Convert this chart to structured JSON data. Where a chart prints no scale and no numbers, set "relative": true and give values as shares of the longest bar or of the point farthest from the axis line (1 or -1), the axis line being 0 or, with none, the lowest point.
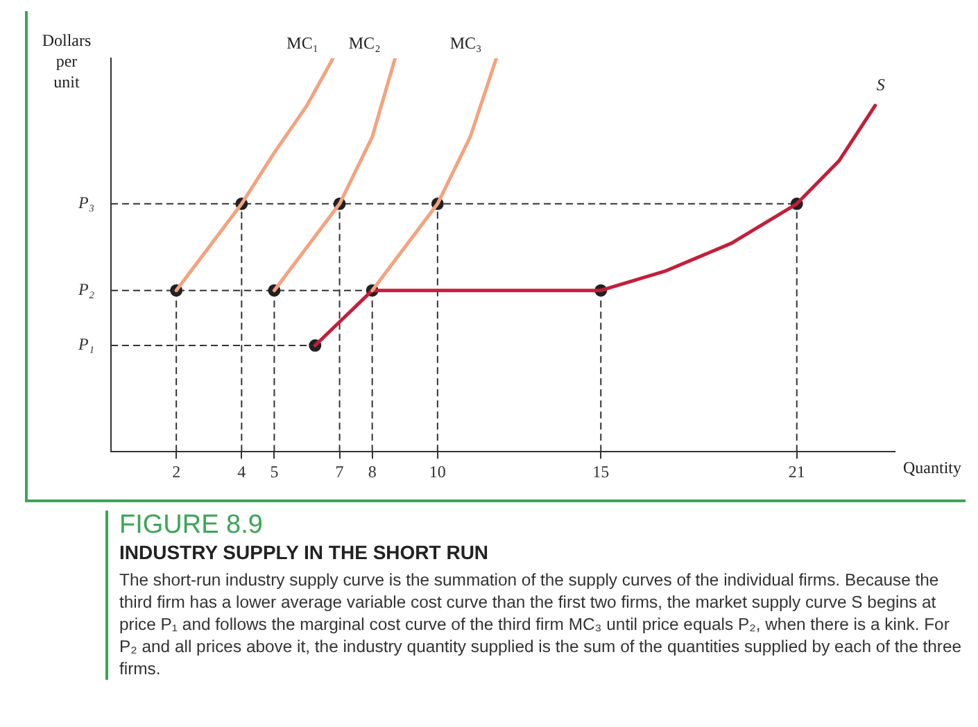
{
  "chart_data": {
    "type": "line",
    "title": "FIGURE 8.9",
    "subtitle": "INDUSTRY SUPPLY IN THE SHORT RUN",
    "xlabel": "Quantity",
    "ylabel": "Dollars per unit",
    "relative": true,
    "xlim": [
      0,
      24
    ],
    "xticks": [
      2,
      4,
      5,
      7,
      8,
      10,
      15,
      21
    ],
    "tick_labels": "x",
    "grid": false,
    "legend": false,
    "series": [
      {
        "name": "MC₁",
        "type": "line",
        "color": "#f5a27f",
        "marker": "none",
        "x": [
          2,
          3,
          4,
          5,
          6,
          6.8
        ],
        "values": [
          0.41,
          0.52,
          0.63,
          0.76,
          0.88,
          1
        ]
      },
      {
        "name": "MC₂",
        "type": "line",
        "color": "#f5a27f",
        "marker": "none",
        "x": [
          5,
          6,
          7,
          8,
          8.7
        ],
        "values": [
          0.41,
          0.52,
          0.63,
          0.8,
          1
        ]
      },
      {
        "name": "MC₃",
        "type": "line",
        "color": "#f5a27f",
        "marker": "none",
        "x": [
          8,
          9,
          10,
          11,
          11.8
        ],
        "values": [
          0.41,
          0.52,
          0.63,
          0.8,
          1
        ]
      },
      {
        "name": "S",
        "type": "line",
        "color": "#c41e3a",
        "marker": "none",
        "x": [
          6.25,
          7,
          8,
          15,
          17,
          19,
          21,
          22.3,
          23.4
        ],
        "values": [
          0.27,
          0.33,
          0.41,
          0.41,
          0.46,
          0.53,
          0.63,
          0.74,
          0.88
        ]
      },
      {
        "type": "scatter",
        "color": "#222222",
        "marker": "circle",
        "x": [
          2,
          4,
          5,
          7,
          8,
          10,
          15,
          21,
          6.25
        ],
        "values": [
          0.41,
          0.63,
          0.41,
          0.63,
          0.41,
          0.63,
          0.41,
          0.63,
          0.27
        ]
      }
    ],
    "ref_lines": [
      {
        "axis": "y",
        "value": 0.63,
        "label": "P₃"
      },
      {
        "axis": "y",
        "value": 0.41,
        "label": "P₂"
      },
      {
        "axis": "y",
        "value": 0.27,
        "label": "P₁"
      },
      {
        "axis": "x",
        "value": 2
      },
      {
        "axis": "x",
        "value": 4
      },
      {
        "axis": "x",
        "value": 5
      },
      {
        "axis": "x",
        "value": 7
      },
      {
        "axis": "x",
        "value": 8
      },
      {
        "axis": "x",
        "value": 10
      },
      {
        "axis": "x",
        "value": 15
      },
      {
        "axis": "x",
        "value": 21
      }
    ],
    "annotations": [
      "The short-run industry supply curve is the summation of the supply curves of the individual firms. Because the third firm has a lower average variable cost curve than the first two firms, the market supply curve S begins at price P₁ and follows the marginal cost curve of the third firm MC₃ until price equals P₂, when there is a kink. For P₂ and all prices above it, the industry quantity supplied is the sum of the quantities supplied by each of the three firms."
    ]
  }
}
